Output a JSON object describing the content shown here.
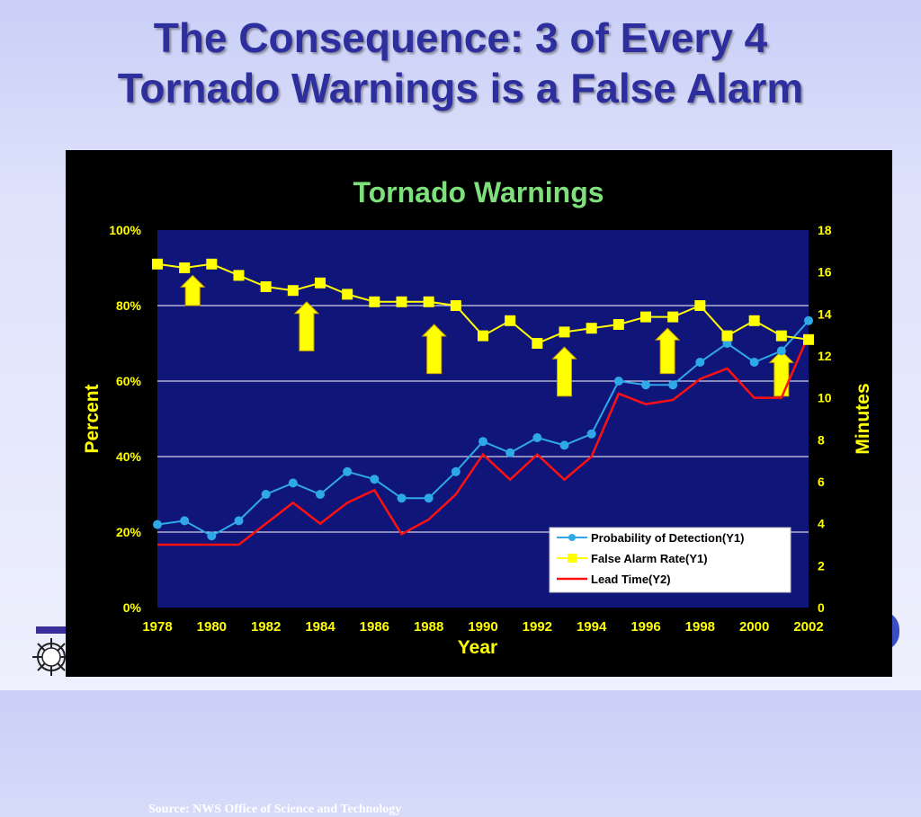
{
  "slide": {
    "title_line1": "The Consequence: 3 of Every 4",
    "title_line2": "Tornado Warnings is a False Alarm",
    "source": "Source: NWS Office of Science and Technology"
  },
  "colors": {
    "title": "#2e2f9e",
    "plot_bg": "#10157a",
    "pod": "#2ea8e6",
    "far": "#ffff00",
    "lead": "#ff1010",
    "arrow": "#ffff00",
    "axis_text": "#ffff00",
    "chart_title": "#7ee07a"
  },
  "chart_data": {
    "type": "line",
    "title": "Tornado Warnings",
    "xlabel": "Year",
    "ylabel": "Percent",
    "y2label": "Minutes",
    "x": [
      1978,
      1979,
      1980,
      1981,
      1982,
      1983,
      1984,
      1985,
      1986,
      1987,
      1988,
      1989,
      1990,
      1991,
      1992,
      1993,
      1994,
      1995,
      1996,
      1997,
      1998,
      1999,
      2000,
      2001,
      2002
    ],
    "xticks": [
      "1978",
      "1980",
      "1982",
      "1984",
      "1986",
      "1988",
      "1990",
      "1992",
      "1994",
      "1996",
      "1998",
      "2000",
      "2002"
    ],
    "yticks": [
      "0%",
      "20%",
      "40%",
      "60%",
      "80%",
      "100%"
    ],
    "y2ticks": [
      "0",
      "2",
      "4",
      "6",
      "8",
      "10",
      "12",
      "14",
      "16",
      "18"
    ],
    "ylim": [
      0,
      100
    ],
    "y2lim": [
      0,
      18
    ],
    "legend_position": "bottom-right",
    "grid": true,
    "series": [
      {
        "name": "Probability of Detection(Y1)",
        "axis": "y1",
        "marker": "circle",
        "values": [
          22,
          23,
          19,
          23,
          30,
          33,
          30,
          36,
          34,
          29,
          29,
          36,
          44,
          41,
          45,
          43,
          46,
          60,
          59,
          59,
          65,
          70,
          65,
          68,
          76
        ]
      },
      {
        "name": "False Alarm Rate(Y1)",
        "axis": "y1",
        "marker": "square",
        "values": [
          91,
          90,
          91,
          88,
          85,
          84,
          86,
          83,
          81,
          81,
          81,
          80,
          72,
          76,
          70,
          73,
          74,
          75,
          77,
          77,
          80,
          72,
          76,
          72,
          71
        ]
      },
      {
        "name": "Lead Time(Y2)",
        "axis": "y2",
        "marker": "none",
        "values": [
          3,
          3,
          3,
          3,
          4,
          5,
          4,
          5,
          5.6,
          3.5,
          4.2,
          5.4,
          7.3,
          6.1,
          7.3,
          6.1,
          7.2,
          10.2,
          9.7,
          9.9,
          10.9,
          11.4,
          10,
          10,
          13
        ]
      }
    ],
    "arrows": [
      {
        "year": 1979.3,
        "pct": 80,
        "pct_top": 88
      },
      {
        "year": 1983.5,
        "pct": 68,
        "pct_top": 81
      },
      {
        "year": 1988.2,
        "pct": 62,
        "pct_top": 75
      },
      {
        "year": 1993.0,
        "pct": 56,
        "pct_top": 69
      },
      {
        "year": 1996.8,
        "pct": 62,
        "pct_top": 74
      },
      {
        "year": 2001.0,
        "pct": 56,
        "pct_top": 68
      }
    ]
  }
}
